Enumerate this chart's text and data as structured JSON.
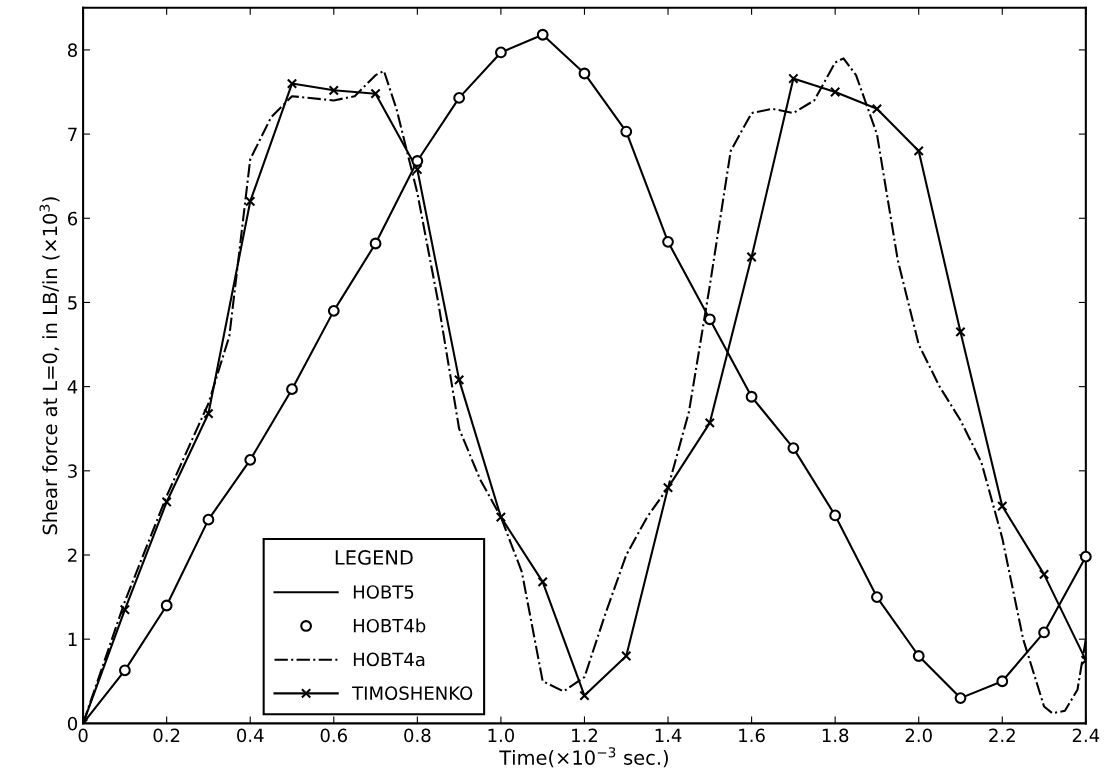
{
  "chart_data": {
    "type": "line",
    "xlabel": "Time(×10$^{−3}$ sec.)",
    "ylabel": "Shear force at L=0, in LB/in (×10$^{3}$)",
    "legend_title": "LEGEND",
    "xlim": [
      0,
      2.4
    ],
    "ylim": [
      0,
      8.5
    ],
    "xticks": [
      0,
      0.2,
      0.4,
      0.6,
      0.8,
      {
        "value": 1.0,
        "label": "1.0"
      },
      1.2,
      1.4,
      1.6,
      1.8,
      {
        "value": 2.0,
        "label": "2.0"
      },
      2.2,
      2.4
    ],
    "yticks": [
      0,
      1,
      2,
      3,
      4,
      5,
      6,
      7,
      8
    ],
    "grid": false,
    "legend": "bottom",
    "series": [
      {
        "name": "HOBT5",
        "color": "#000000",
        "line_style": "solid",
        "marker": "none",
        "x": [
          0,
          0.1,
          0.2,
          0.3,
          0.4,
          0.5,
          0.6,
          0.7,
          0.8,
          0.9,
          1.0,
          1.1,
          1.2,
          1.3,
          1.4,
          1.5,
          1.6,
          1.7,
          1.8,
          1.9,
          2.0,
          2.1,
          2.2,
          2.3,
          2.4
        ],
        "values": [
          0,
          0.63,
          1.4,
          2.42,
          3.13,
          3.97,
          4.9,
          5.7,
          6.68,
          7.43,
          7.97,
          8.18,
          7.72,
          7.03,
          5.72,
          4.8,
          3.88,
          3.27,
          2.47,
          1.5,
          0.8,
          0.3,
          0.5,
          1.08,
          1.98
        ]
      },
      {
        "name": "HOBT4b",
        "type": "scatter",
        "color": "#000000",
        "marker": "circle",
        "x": [
          0.1,
          0.2,
          0.3,
          0.4,
          0.5,
          0.6,
          0.7,
          0.8,
          0.9,
          1.0,
          1.1,
          1.2,
          1.3,
          1.4,
          1.5,
          1.6,
          1.7,
          1.8,
          1.9,
          2.0,
          2.1,
          2.2,
          2.3,
          2.4
        ],
        "values": [
          0.63,
          1.4,
          2.42,
          3.13,
          3.97,
          4.9,
          5.7,
          6.68,
          7.43,
          7.97,
          8.18,
          7.72,
          7.03,
          5.72,
          4.8,
          3.88,
          3.27,
          2.47,
          1.5,
          0.8,
          0.3,
          0.5,
          1.08,
          1.98
        ]
      },
      {
        "name": "HOBT4a",
        "color": "#000000",
        "line_style": "dashdot",
        "marker": "none",
        "x": [
          0,
          0.1,
          0.2,
          0.3,
          0.35,
          0.4,
          0.45,
          0.5,
          0.6,
          0.65,
          0.7,
          0.72,
          0.75,
          0.8,
          0.85,
          0.9,
          0.95,
          1.0,
          1.05,
          1.1,
          1.15,
          1.2,
          1.25,
          1.3,
          1.35,
          1.4,
          1.45,
          1.5,
          1.55,
          1.6,
          1.65,
          1.7,
          1.75,
          1.8,
          1.82,
          1.85,
          1.9,
          1.95,
          2.0,
          2.05,
          2.1,
          2.15,
          2.2,
          2.25,
          2.3,
          2.32,
          2.35,
          2.38,
          2.4
        ],
        "values": [
          0,
          1.45,
          2.7,
          3.8,
          4.6,
          6.7,
          7.2,
          7.45,
          7.4,
          7.45,
          7.7,
          7.75,
          7.3,
          6.3,
          5.0,
          3.5,
          2.9,
          2.45,
          1.8,
          0.5,
          0.38,
          0.55,
          1.3,
          2.0,
          2.45,
          2.8,
          3.7,
          5.2,
          6.8,
          7.25,
          7.3,
          7.25,
          7.4,
          7.85,
          7.9,
          7.7,
          7.0,
          5.5,
          4.5,
          4.0,
          3.6,
          3.1,
          2.2,
          1.0,
          0.2,
          0.12,
          0.15,
          0.4,
          1.0
        ]
      },
      {
        "name": "TIMOSHENKO",
        "color": "#000000",
        "line_style": "solid",
        "marker": "cross",
        "x": [
          0,
          0.1,
          0.2,
          0.3,
          0.4,
          0.5,
          0.6,
          0.7,
          0.8,
          0.9,
          1.0,
          1.1,
          1.2,
          1.3,
          1.4,
          1.5,
          1.6,
          1.7,
          1.8,
          1.9,
          2.0,
          2.1,
          2.2,
          2.3,
          2.4
        ],
        "values": [
          0,
          1.35,
          2.63,
          3.68,
          6.2,
          7.6,
          7.52,
          7.48,
          6.58,
          4.08,
          2.45,
          1.68,
          0.33,
          0.8,
          2.8,
          3.57,
          5.54,
          7.66,
          7.5,
          7.3,
          6.8,
          4.65,
          2.58,
          1.77,
          0.75
        ]
      }
    ]
  }
}
